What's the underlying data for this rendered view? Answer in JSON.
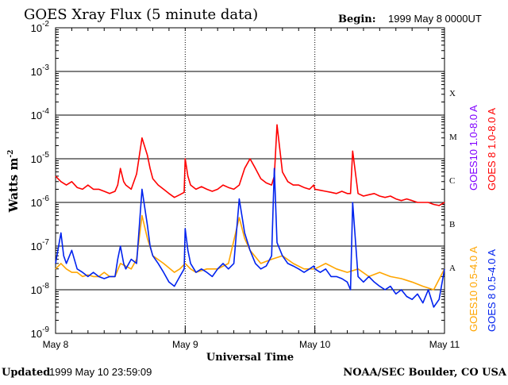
{
  "header": {
    "title": "GOES Xray Flux (5 minute data)",
    "begin_label": "Begin:",
    "begin_value": "1999 May 8 0000UT"
  },
  "footer": {
    "updated_label": "Updated",
    "updated_value": "1999 May 10 23:59:09",
    "source": "NOAA/SEC Boulder, CO USA"
  },
  "chart_data": {
    "type": "line",
    "title": "GOES Xray Flux (5 minute data)",
    "xlabel": "Universal Time",
    "ylabel": "Watts m",
    "ylabel_sup": "-2",
    "y_scale": "log",
    "ylim": [
      1e-09,
      0.01
    ],
    "xlim": [
      0,
      72
    ],
    "x_unit": "hours since 1999 May 8 00:00 UT",
    "x_ticks": [
      {
        "label": "May 8",
        "value": 0
      },
      {
        "label": "May 9",
        "value": 24
      },
      {
        "label": "May 10",
        "value": 48
      },
      {
        "label": "May 11",
        "value": 72
      }
    ],
    "y_ticks": [
      {
        "base": "10",
        "exp": "-2",
        "value": 0.01
      },
      {
        "base": "10",
        "exp": "-3",
        "value": 0.001
      },
      {
        "base": "10",
        "exp": "-4",
        "value": 0.0001
      },
      {
        "base": "10",
        "exp": "-5",
        "value": 1e-05
      },
      {
        "base": "10",
        "exp": "-6",
        "value": 1e-06
      },
      {
        "base": "10",
        "exp": "-7",
        "value": 1e-07
      },
      {
        "base": "10",
        "exp": "-8",
        "value": 1e-08
      },
      {
        "base": "10",
        "exp": "-9",
        "value": 1e-09
      }
    ],
    "flare_classes": [
      {
        "label": "X",
        "value": 0.00032
      },
      {
        "label": "M",
        "value": 3.2e-05
      },
      {
        "label": "C",
        "value": 3.2e-06
      },
      {
        "label": "B",
        "value": 3.2e-07
      },
      {
        "label": "A",
        "value": 3.2e-08
      }
    ],
    "grid": "horizontal lines at decades 1e-8 through 1e-3; dotted vertical day dividers",
    "legend_position": "right, vertical text",
    "series": [
      {
        "name": "GOES10 1.0-8.0 A",
        "color": "#8000ff",
        "x": [
          0,
          48,
          72
        ],
        "y": [
          1e-06,
          1e-06,
          1e-06
        ]
      },
      {
        "name": "GOES 8 1.0-8.0 A",
        "color": "#ff0000",
        "x": [
          0,
          1,
          2,
          3,
          4,
          5,
          6,
          7,
          8,
          9,
          10,
          11,
          11.5,
          12,
          12.6,
          13,
          14,
          15,
          16,
          17,
          17.5,
          18,
          19,
          20,
          21,
          22,
          23,
          23.8,
          24,
          24.5,
          25,
          26,
          27,
          28,
          29,
          30,
          31,
          32,
          33,
          34,
          35,
          36,
          37,
          38,
          39,
          40,
          40.5,
          41,
          42,
          43,
          44,
          45,
          46,
          47,
          47.8,
          48,
          49,
          50,
          51,
          52,
          53,
          54,
          54.6,
          55,
          56,
          57,
          58,
          59,
          60,
          61,
          62,
          63,
          64,
          65,
          66,
          67,
          68,
          69,
          70,
          71,
          72
        ],
        "y": [
          4e-06,
          3e-06,
          2.5e-06,
          3e-06,
          2.2e-06,
          2e-06,
          2.5e-06,
          2e-06,
          2e-06,
          1.8e-06,
          1.6e-06,
          1.8e-06,
          2.5e-06,
          6e-06,
          3e-06,
          2.5e-06,
          2e-06,
          4.5e-06,
          3e-05,
          1.2e-05,
          6e-06,
          3.5e-06,
          2.5e-06,
          2e-06,
          1.6e-06,
          1.3e-06,
          1.5e-06,
          1.7e-06,
          1e-05,
          4e-06,
          2.5e-06,
          2e-06,
          2.3e-06,
          2e-06,
          1.8e-06,
          2e-06,
          2.5e-06,
          2.2e-06,
          2e-06,
          2.5e-06,
          6e-06,
          1e-05,
          6e-06,
          3.5e-06,
          2.8e-06,
          2.5e-06,
          4e-06,
          6e-05,
          5e-06,
          3e-06,
          2.5e-06,
          2.5e-06,
          2.2e-06,
          2e-06,
          2.5e-06,
          2e-06,
          1.9e-06,
          1.8e-06,
          1.7e-06,
          1.6e-06,
          1.8e-06,
          1.6e-06,
          1.6e-06,
          1.5e-05,
          1.6e-06,
          1.4e-06,
          1.5e-06,
          1.6e-06,
          1.4e-06,
          1.3e-06,
          1.4e-06,
          1.2e-06,
          1.1e-06,
          1.2e-06,
          1.1e-06,
          1e-06,
          1e-06,
          1e-06,
          9e-07,
          8.5e-07,
          1e-06
        ]
      },
      {
        "name": "GOES10 0.5-4.0 A",
        "color": "#ffa500",
        "x": [
          0,
          1,
          2,
          3,
          4,
          5,
          6,
          7,
          8,
          9,
          10,
          11,
          12,
          14,
          15,
          16,
          17,
          18,
          20,
          22,
          23,
          24,
          25,
          26,
          28,
          30,
          32,
          34,
          35,
          36,
          38,
          40,
          42,
          44,
          46,
          48,
          50,
          52,
          54,
          56,
          58,
          60,
          62,
          64,
          66,
          68,
          70,
          72
        ],
        "y": [
          3e-08,
          4e-08,
          3e-08,
          2.5e-08,
          2.5e-08,
          2e-08,
          2.2e-08,
          2e-08,
          2e-08,
          2.5e-08,
          2e-08,
          2e-08,
          4e-08,
          3e-08,
          5e-08,
          5e-07,
          1.5e-07,
          6e-08,
          4e-08,
          2.5e-08,
          3e-08,
          4e-08,
          3e-08,
          2.5e-08,
          3e-08,
          3e-08,
          4e-08,
          4.5e-07,
          1.5e-07,
          8e-08,
          4e-08,
          5e-08,
          6e-08,
          4e-08,
          3e-08,
          3e-08,
          4e-08,
          3e-08,
          2.5e-08,
          3e-08,
          2e-08,
          2.5e-08,
          2e-08,
          1.8e-08,
          1.5e-08,
          1.2e-08,
          1e-08,
          3e-08
        ]
      },
      {
        "name": "GOES 8 0.5-4.0 A",
        "color": "#0022ee",
        "x": [
          0,
          1,
          1.5,
          2,
          3,
          4,
          5,
          6,
          7,
          8,
          9,
          10,
          11,
          11.5,
          12,
          12.6,
          13,
          14,
          15,
          16,
          17,
          17.5,
          18,
          19,
          20,
          21,
          22,
          23,
          23.8,
          24,
          24.5,
          25,
          26,
          27,
          28,
          29,
          30,
          31,
          32,
          33,
          34,
          35,
          36,
          37,
          38,
          39,
          40,
          40.5,
          41,
          42,
          43,
          44,
          45,
          46,
          47,
          47.8,
          48,
          49,
          50,
          51,
          52,
          53,
          54,
          54.6,
          55,
          56,
          57,
          58,
          59,
          60,
          61,
          62,
          63,
          64,
          65,
          66,
          67,
          68,
          69,
          70,
          71,
          72
        ],
        "y": [
          4e-08,
          2e-07,
          6e-08,
          4e-08,
          8e-08,
          3e-08,
          2.5e-08,
          2e-08,
          2.5e-08,
          2e-08,
          1.8e-08,
          2e-08,
          2e-08,
          5e-08,
          1e-07,
          4e-08,
          3e-08,
          5e-08,
          4e-08,
          2e-06,
          3e-07,
          1e-07,
          6e-08,
          4e-08,
          2.5e-08,
          1.5e-08,
          1.2e-08,
          2e-08,
          3e-08,
          2.5e-07,
          8e-08,
          4e-08,
          2.5e-08,
          3e-08,
          2.5e-08,
          2e-08,
          3e-08,
          4e-08,
          3e-08,
          4e-08,
          1.2e-06,
          2e-07,
          8e-08,
          4e-08,
          3e-08,
          3.5e-08,
          6e-08,
          6e-06,
          1.2e-07,
          6e-08,
          4e-08,
          3.5e-08,
          3e-08,
          2.5e-08,
          3e-08,
          3.5e-08,
          3e-08,
          2.5e-08,
          3e-08,
          2e-08,
          2e-08,
          1.8e-08,
          1.5e-08,
          1e-08,
          1e-06,
          2e-08,
          1.5e-08,
          2e-08,
          1.5e-08,
          1.2e-08,
          1e-08,
          1.2e-08,
          8e-09,
          1e-08,
          7e-09,
          6e-09,
          8e-09,
          5e-09,
          1e-08,
          4e-09,
          6e-09,
          3e-08
        ]
      }
    ]
  }
}
